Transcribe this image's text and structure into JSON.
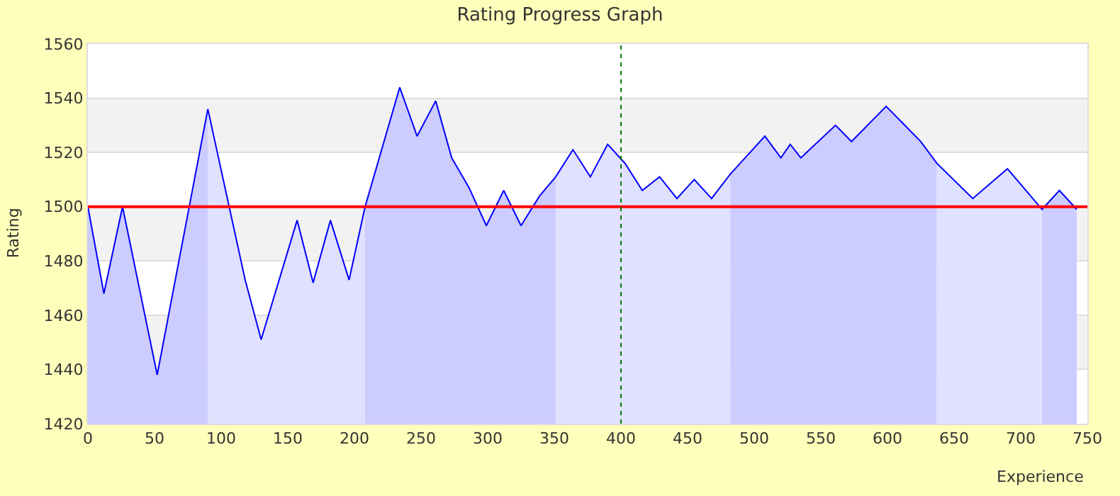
{
  "chart_data": {
    "type": "line",
    "title": "Rating Progress Graph",
    "xlabel": "Experience",
    "ylabel": "Rating",
    "xlim": [
      0,
      750
    ],
    "xticks": [
      0,
      50,
      100,
      150,
      200,
      250,
      300,
      350,
      400,
      450,
      500,
      550,
      600,
      650,
      700,
      750
    ],
    "ylim": [
      1420,
      1560
    ],
    "yticks": [
      1420,
      1440,
      1460,
      1480,
      1500,
      1520,
      1540,
      1560
    ],
    "grid": "y",
    "marker": "none",
    "line_style": "solid",
    "series": [
      {
        "type": "area",
        "color": "#ccccff",
        "x": [
          0,
          12,
          26,
          52,
          90
        ],
        "values": [
          1500,
          1468,
          1500,
          1438,
          1536
        ]
      },
      {
        "type": "area",
        "color": "#e0e0ff",
        "x": [
          90,
          118,
          130,
          157,
          169,
          182,
          196,
          208
        ],
        "values": [
          1536,
          1473,
          1451,
          1495,
          1472,
          1495,
          1473,
          1500
        ]
      },
      {
        "type": "area",
        "color": "#ccccff",
        "x": [
          208,
          234,
          247,
          261,
          273,
          286,
          299,
          312,
          325,
          339,
          351
        ],
        "values": [
          1500,
          1544,
          1526,
          1539,
          1518,
          1507,
          1493,
          1506,
          1493,
          1504,
          1511
        ]
      },
      {
        "type": "area",
        "color": "#e0e0ff",
        "x": [
          351,
          364,
          377,
          390,
          403,
          416,
          429,
          442,
          455,
          468,
          482
        ],
        "values": [
          1511,
          1521,
          1511,
          1523,
          1516,
          1506,
          1511,
          1503,
          1510,
          1503,
          1512
        ]
      },
      {
        "type": "area",
        "color": "#ccccff",
        "x": [
          482,
          508,
          520,
          527,
          535,
          561,
          573,
          599,
          611,
          625,
          637
        ],
        "values": [
          1512,
          1526,
          1518,
          1523,
          1518,
          1530,
          1524,
          1537,
          1531,
          1524,
          1516
        ]
      },
      {
        "type": "area",
        "color": "#e0e0ff",
        "x": [
          637,
          664,
          690,
          716
        ],
        "values": [
          1516,
          1503,
          1514,
          1499
        ]
      },
      {
        "type": "area",
        "color": "#ccccff",
        "x": [
          716,
          729,
          742
        ],
        "values": [
          1499,
          1506,
          1499
        ]
      },
      {
        "color": "#0000ff",
        "x": [
          0,
          12,
          26,
          52,
          90,
          118,
          130,
          157,
          169,
          182,
          196,
          208,
          234,
          247,
          261,
          273,
          286,
          299,
          312,
          325,
          339,
          351,
          364,
          377,
          390,
          403,
          416,
          429,
          442,
          455,
          468,
          482,
          508,
          520,
          527,
          535,
          561,
          573,
          599,
          611,
          625,
          637,
          664,
          690,
          716,
          729,
          742
        ],
        "values": [
          1500,
          1468,
          1500,
          1438,
          1536,
          1473,
          1451,
          1495,
          1472,
          1495,
          1473,
          1500,
          1544,
          1526,
          1539,
          1518,
          1507,
          1493,
          1506,
          1493,
          1504,
          1511,
          1521,
          1511,
          1523,
          1516,
          1506,
          1511,
          1503,
          1510,
          1503,
          1512,
          1526,
          1518,
          1523,
          1518,
          1530,
          1524,
          1537,
          1531,
          1524,
          1516,
          1503,
          1514,
          1499,
          1506,
          1499
        ]
      }
    ],
    "bands": [
      {
        "axis": "y",
        "from": 1440,
        "to": 1460,
        "color": "#f2f2f2"
      },
      {
        "axis": "y",
        "from": 1480,
        "to": 1500,
        "color": "#f2f2f2"
      },
      {
        "axis": "y",
        "from": 1520,
        "to": 1540,
        "color": "#f2f2f2"
      }
    ],
    "ref_lines": [
      {
        "axis": "y",
        "value": 1500,
        "color": "#ff0000",
        "line_style": "solid"
      },
      {
        "axis": "x",
        "value": 400,
        "color": "#007700",
        "line_style": "dotted"
      }
    ]
  }
}
